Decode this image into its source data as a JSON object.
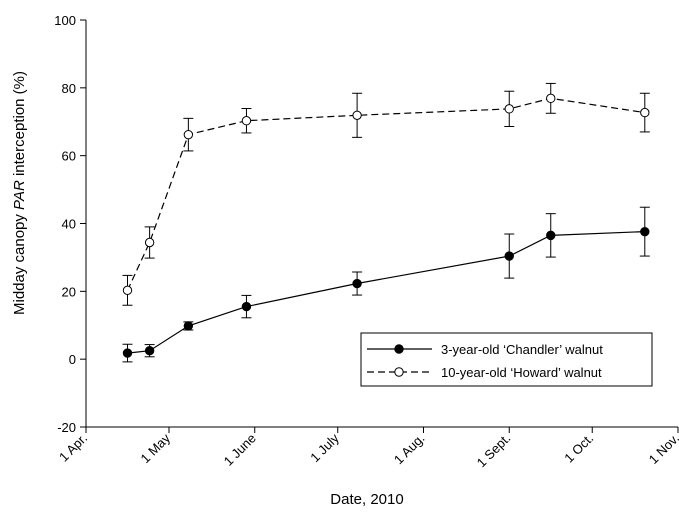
{
  "chart_data": {
    "type": "line",
    "xlabel": "Date, 2010",
    "ylabel_parts": [
      "Midday canopy ",
      "PAR",
      " interception (%)"
    ],
    "ylim": [
      -20,
      100
    ],
    "yticks": [
      -20,
      0,
      20,
      40,
      60,
      80,
      100
    ],
    "x_range": [
      "2010-04-01",
      "2010-11-01"
    ],
    "xticks": [
      {
        "date": "2010-04-01",
        "label": "1 Apr."
      },
      {
        "date": "2010-05-01",
        "label": "1 May"
      },
      {
        "date": "2010-06-01",
        "label": "1 June"
      },
      {
        "date": "2010-07-01",
        "label": "1 July"
      },
      {
        "date": "2010-08-01",
        "label": "1 Aug."
      },
      {
        "date": "2010-09-01",
        "label": "1 Sept."
      },
      {
        "date": "2010-10-01",
        "label": "1 Oct."
      },
      {
        "date": "2010-11-01",
        "label": "1 Nov."
      }
    ],
    "legend_position": "lower-right",
    "series": [
      {
        "name": "3-year-old ‘Chandler’ walnut",
        "marker": "filled-circle",
        "line": "solid",
        "points": [
          {
            "x": "2010-04-16",
            "y": 1.8,
            "err": 2.6
          },
          {
            "x": "2010-04-24",
            "y": 2.5,
            "err": 1.8
          },
          {
            "x": "2010-05-08",
            "y": 9.8,
            "err": 1.2
          },
          {
            "x": "2010-05-29",
            "y": 15.5,
            "err": 3.3
          },
          {
            "x": "2010-07-08",
            "y": 22.3,
            "err": 3.4
          },
          {
            "x": "2010-09-01",
            "y": 30.4,
            "err": 6.5
          },
          {
            "x": "2010-09-16",
            "y": 36.5,
            "err": 6.4
          },
          {
            "x": "2010-10-20",
            "y": 37.6,
            "err": 7.2
          }
        ]
      },
      {
        "name": "10-year-old ‘Howard’ walnut",
        "marker": "open-circle",
        "line": "dashed",
        "points": [
          {
            "x": "2010-04-16",
            "y": 20.3,
            "err": 4.4
          },
          {
            "x": "2010-04-24",
            "y": 34.4,
            "err": 4.6
          },
          {
            "x": "2010-05-08",
            "y": 66.2,
            "err": 4.8
          },
          {
            "x": "2010-05-29",
            "y": 70.3,
            "err": 3.6
          },
          {
            "x": "2010-07-08",
            "y": 71.9,
            "err": 6.5
          },
          {
            "x": "2010-09-01",
            "y": 73.8,
            "err": 5.2
          },
          {
            "x": "2010-09-16",
            "y": 76.9,
            "err": 4.4
          },
          {
            "x": "2010-10-20",
            "y": 72.7,
            "err": 5.7
          }
        ]
      }
    ]
  }
}
